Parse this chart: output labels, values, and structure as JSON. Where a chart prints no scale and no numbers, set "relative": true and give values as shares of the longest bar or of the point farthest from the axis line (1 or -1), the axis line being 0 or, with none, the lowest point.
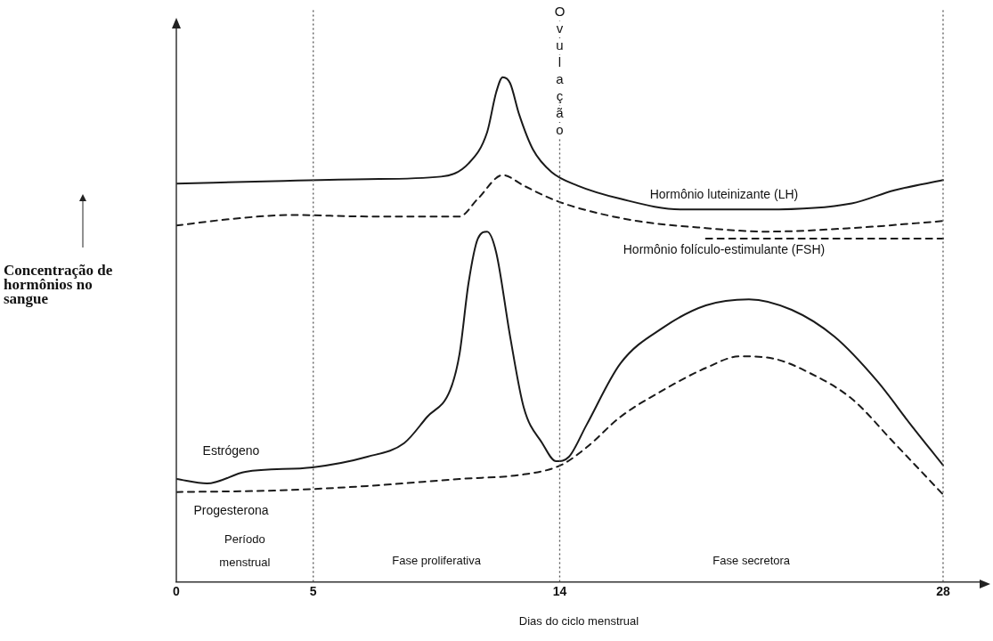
{
  "chart_data": {
    "type": "line",
    "relative": true,
    "xlabel": "Dias do ciclo menstrual",
    "ylabel": "Concentração de hormônios no sangue",
    "xlim": [
      0,
      29.4
    ],
    "xticks": [
      0,
      5,
      14,
      28
    ],
    "grid": false,
    "legend": false,
    "marker": "none",
    "series": [
      {
        "name": "Hormônio luteinizante (LH)",
        "color": "#1a1a1a",
        "line_style": "solid",
        "x": [
          0,
          3.57,
          6.98,
          9.67,
          10.67,
          11.35,
          11.68,
          11.92,
          12.19,
          12.52,
          13.03,
          13.7,
          14.66,
          16.22,
          18.41,
          21.53,
          24.66,
          26.22,
          28
        ],
        "values": [
          0.789,
          0.794,
          0.798,
          0.803,
          0.829,
          0.891,
          0.97,
          1,
          0.988,
          0.926,
          0.856,
          0.812,
          0.785,
          0.759,
          0.738,
          0.738,
          0.75,
          0.776,
          0.796
        ]
      },
      {
        "name": "Hormônio folículo-estimulante (FSH)",
        "color": "#1a1a1a",
        "line_style": "dashed",
        "x": [
          0,
          1.82,
          4.27,
          6.98,
          10.34,
          11.01,
          11.92,
          12.69,
          13.7,
          14.66,
          16.84,
          19.34,
          21.53,
          24.66,
          28
        ],
        "values": [
          0.706,
          0.718,
          0.727,
          0.724,
          0.724,
          0.759,
          0.806,
          0.785,
          0.759,
          0.741,
          0.715,
          0.701,
          0.694,
          0.701,
          0.715
        ]
      },
      {
        "color": "#1a1a1a",
        "line_style": "dashed",
        "x": [
          19.34,
          28
        ],
        "values": [
          0.68,
          0.68
        ]
      },
      {
        "name": "Estrógeno",
        "color": "#1a1a1a",
        "line_style": "solid",
        "x": [
          0,
          1.12,
          2.52,
          4.97,
          6.98,
          8.32,
          9.16,
          10,
          10.34,
          10.67,
          11.01,
          11.35,
          11.68,
          12.19,
          12.69,
          13.36,
          13.87,
          14.34,
          14.97,
          16.22,
          17.78,
          19.34,
          20.91,
          22.47,
          24.03,
          25.59,
          26.84,
          28
        ],
        "values": [
          0.204,
          0.195,
          0.218,
          0.227,
          0.248,
          0.275,
          0.327,
          0.38,
          0.451,
          0.592,
          0.68,
          0.694,
          0.653,
          0.486,
          0.345,
          0.275,
          0.239,
          0.248,
          0.31,
          0.433,
          0.504,
          0.548,
          0.56,
          0.539,
          0.486,
          0.398,
          0.31,
          0.231
        ]
      },
      {
        "name": "Progesterona",
        "color": "#1a1a1a",
        "line_style": "dashed",
        "x": [
          0,
          3.57,
          6.98,
          10.34,
          12.69,
          14.03,
          14.97,
          16.22,
          17.78,
          19.34,
          20.59,
          21.84,
          23.09,
          24.66,
          26.22,
          28
        ],
        "values": [
          0.178,
          0.181,
          0.19,
          0.204,
          0.213,
          0.231,
          0.266,
          0.327,
          0.38,
          0.424,
          0.447,
          0.442,
          0.415,
          0.363,
          0.275,
          0.173
        ]
      }
    ],
    "ref_lines": [
      {
        "axis": "x",
        "value": 5,
        "line_style": "dotted"
      },
      {
        "axis": "x",
        "value": 14,
        "label": "Ovulação",
        "line_style": "dotted"
      },
      {
        "axis": "x",
        "value": 28,
        "line_style": "dotted"
      }
    ],
    "annotations": [
      "Período menstrual",
      "Fase proliferativa",
      "Fase secretora"
    ]
  }
}
